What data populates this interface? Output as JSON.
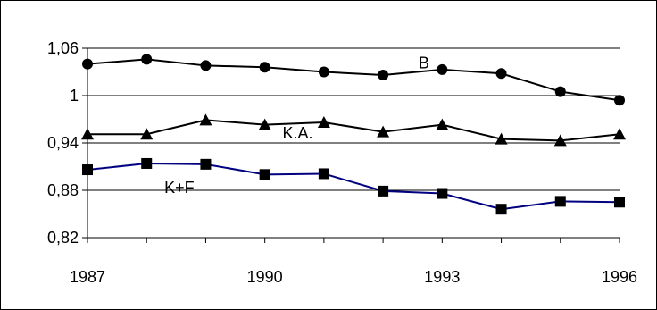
{
  "chart_data": {
    "type": "line",
    "title": "",
    "xlabel": "",
    "ylabel": "",
    "x": [
      1987,
      1988,
      1989,
      1990,
      1991,
      1992,
      1993,
      1994,
      1995,
      1996
    ],
    "x_ticks": [
      "1987",
      "1990",
      "1993",
      "1996"
    ],
    "y_ticks": [
      "1,06",
      "1",
      "0,94",
      "0,88",
      "0,82"
    ],
    "ylim": [
      0.82,
      1.06
    ],
    "grid": "horizontal",
    "series": [
      {
        "name": "B",
        "marker": "circle",
        "color": "#000000",
        "values": [
          1.04,
          1.046,
          1.038,
          1.036,
          1.03,
          1.026,
          1.033,
          1.028,
          1.005,
          0.994
        ]
      },
      {
        "name": "K.A.",
        "marker": "triangle",
        "color": "#000000",
        "values": [
          0.951,
          0.951,
          0.969,
          0.963,
          0.966,
          0.954,
          0.963,
          0.945,
          0.943,
          0.951
        ]
      },
      {
        "name": "K+F",
        "marker": "square",
        "color": "#000080",
        "values": [
          0.906,
          0.914,
          0.913,
          0.9,
          0.901,
          0.879,
          0.876,
          0.856,
          0.866,
          0.865
        ]
      }
    ]
  }
}
